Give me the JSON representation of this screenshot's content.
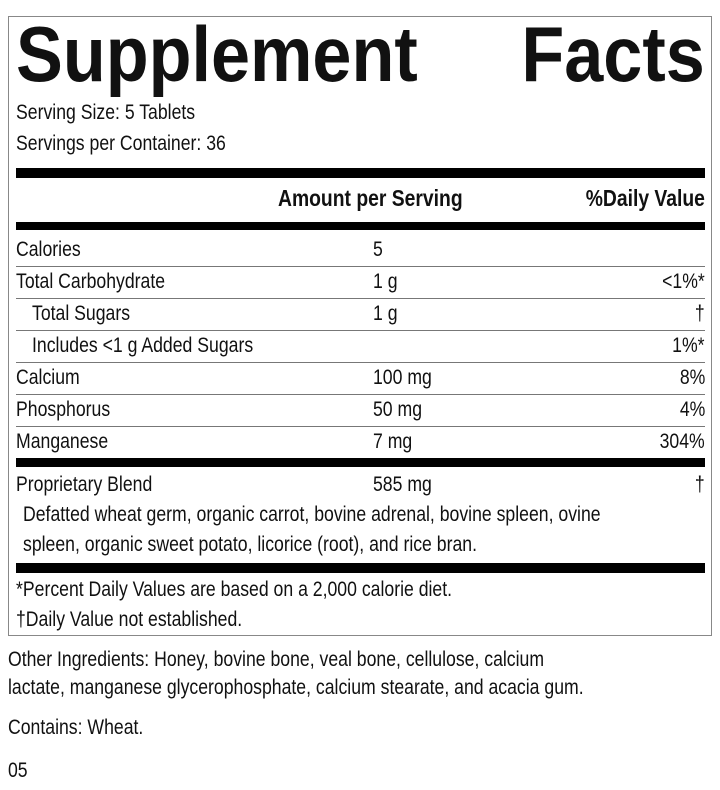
{
  "title": {
    "word1": "Supplement",
    "word2": "Facts"
  },
  "serving_size": "Serving Size: 5 Tablets",
  "servings_per_container": "Servings per Container: 36",
  "header": {
    "amount": "Amount per Serving",
    "daily_value": "%Daily Value"
  },
  "rows": [
    {
      "name": "Calories",
      "amount": "5",
      "dv": ""
    },
    {
      "name": "Total Carbohydrate",
      "amount": "1 g",
      "dv": "<1%*"
    },
    {
      "name": "Total Sugars",
      "amount": "1 g",
      "dv": "†"
    },
    {
      "name": "Includes <1 g Added Sugars",
      "amount": "",
      "dv": "1%*"
    },
    {
      "name": "Calcium",
      "amount": "100 mg",
      "dv": "8%"
    },
    {
      "name": "Phosphorus",
      "amount": "50 mg",
      "dv": "4%"
    },
    {
      "name": "Manganese",
      "amount": "7 mg",
      "dv": "304%"
    }
  ],
  "blend": {
    "name": "Proprietary Blend",
    "amount": "585 mg",
    "dv": "†",
    "line1": "Defatted wheat germ, organic carrot, bovine adrenal, bovine spleen, ovine",
    "line2": "spleen, organic sweet potato, licorice (root), and rice bran."
  },
  "footnotes": [
    "*Percent Daily Values are based on a 2,000 calorie diet.",
    "†Daily Value not established."
  ],
  "other_ingredients": {
    "line1": "Other Ingredients: Honey, bovine bone, veal bone, cellulose, calcium",
    "line2": "lactate, manganese glycerophosphate, calcium stearate, and acacia gum."
  },
  "contains": "Contains: Wheat.",
  "code": "05"
}
